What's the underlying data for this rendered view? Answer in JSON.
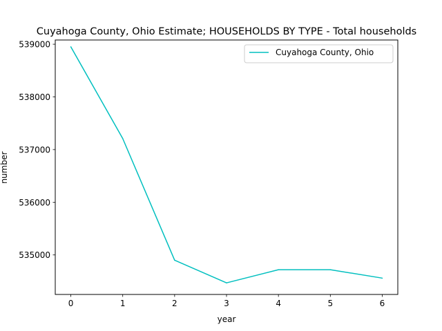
{
  "chart_data": {
    "type": "line",
    "title": "Cuyahoga County, Ohio Estimate; HOUSEHOLDS BY TYPE - Total households",
    "xlabel": "year",
    "ylabel": "number",
    "x": [
      0,
      1,
      2,
      3,
      4,
      5,
      6
    ],
    "series": [
      {
        "name": "Cuyahoga County, Ohio",
        "color": "#00bfbf",
        "values": [
          538950,
          537210,
          534900,
          534470,
          534720,
          534720,
          534560
        ]
      }
    ],
    "xlim": [
      -0.3,
      6.3
    ],
    "ylim": [
      534250,
      539080
    ],
    "xticks": [
      0,
      1,
      2,
      3,
      4,
      5,
      6
    ],
    "yticks": [
      535000,
      536000,
      537000,
      538000,
      539000
    ],
    "xtick_labels": [
      "0",
      "1",
      "2",
      "3",
      "4",
      "5",
      "6"
    ],
    "ytick_labels": [
      "535000",
      "536000",
      "537000",
      "538000",
      "539000"
    ],
    "grid": false,
    "legend_position": "upper right"
  }
}
